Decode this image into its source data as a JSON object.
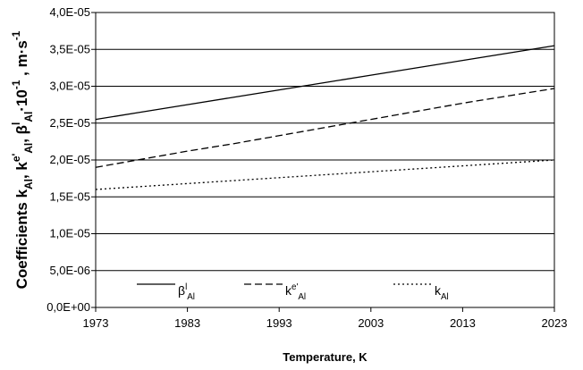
{
  "chart_data": {
    "type": "line",
    "ylabel": [
      {
        "text": "Coefficients k"
      },
      {
        "text": "Al",
        "pos": "sub"
      },
      {
        "text": ", k"
      },
      {
        "text": "e'",
        "pos": "sup"
      },
      {
        "text": "Al",
        "pos": "sub"
      },
      {
        "text": ", β"
      },
      {
        "text": "l",
        "pos": "sup"
      },
      {
        "text": "Al",
        "pos": "sub"
      },
      {
        "text": "·10"
      },
      {
        "text": "-1",
        "pos": "sup"
      },
      {
        "text": " , m·s"
      },
      {
        "text": "-1",
        "pos": "sup"
      }
    ],
    "xlabel": "Temperature, K",
    "x": [
      1973,
      1978,
      1983,
      1988,
      1993,
      1998,
      2003,
      2008,
      2013,
      2018,
      2023
    ],
    "xlim": [
      1973,
      2023
    ],
    "xticks": [
      1973,
      1983,
      1993,
      2003,
      2013,
      2023
    ],
    "ylim": [
      0,
      4e-05
    ],
    "yticks": [
      {
        "value": 0,
        "label": "0,0E+00"
      },
      {
        "value": 5e-06,
        "label": "5,0E-06"
      },
      {
        "value": 1e-05,
        "label": "1,0E-05"
      },
      {
        "value": 1.5e-05,
        "label": "1,5E-05"
      },
      {
        "value": 2e-05,
        "label": "2,0E-05"
      },
      {
        "value": 2.5e-05,
        "label": "2,5E-05"
      },
      {
        "value": 3e-05,
        "label": "3,0E-05"
      },
      {
        "value": 3.5e-05,
        "label": "3,5E-05"
      },
      {
        "value": 4e-05,
        "label": "4,0E-05"
      }
    ],
    "grid": true,
    "legend": "bottom",
    "series": [
      {
        "name": [
          {
            "text": "β"
          },
          {
            "text": "l",
            "pos": "sup"
          },
          {
            "text": "Al",
            "pos": "sub"
          }
        ],
        "color": "#000000",
        "dash": "solid",
        "values": [
          2.55e-05,
          2.65e-05,
          2.75e-05,
          2.85e-05,
          2.95e-05,
          3.05e-05,
          3.15e-05,
          3.25e-05,
          3.35e-05,
          3.45e-05,
          3.55e-05
        ]
      },
      {
        "name": [
          {
            "text": "k"
          },
          {
            "text": "e'",
            "pos": "sup"
          },
          {
            "text": "Al",
            "pos": "sub"
          }
        ],
        "color": "#000000",
        "dash": "dashed",
        "values": [
          1.9e-05,
          2.01e-05,
          2.12e-05,
          2.22e-05,
          2.33e-05,
          2.44e-05,
          2.55e-05,
          2.66e-05,
          2.77e-05,
          2.87e-05,
          2.97e-05
        ]
      },
      {
        "name": [
          {
            "text": "k"
          },
          {
            "text": "Al",
            "pos": "sub"
          }
        ],
        "color": "#000000",
        "dash": "dotted",
        "values": [
          1.6e-05,
          1.64e-05,
          1.68e-05,
          1.72e-05,
          1.76e-05,
          1.8e-05,
          1.84e-05,
          1.88e-05,
          1.92e-05,
          1.96e-05,
          2e-05
        ]
      }
    ]
  }
}
